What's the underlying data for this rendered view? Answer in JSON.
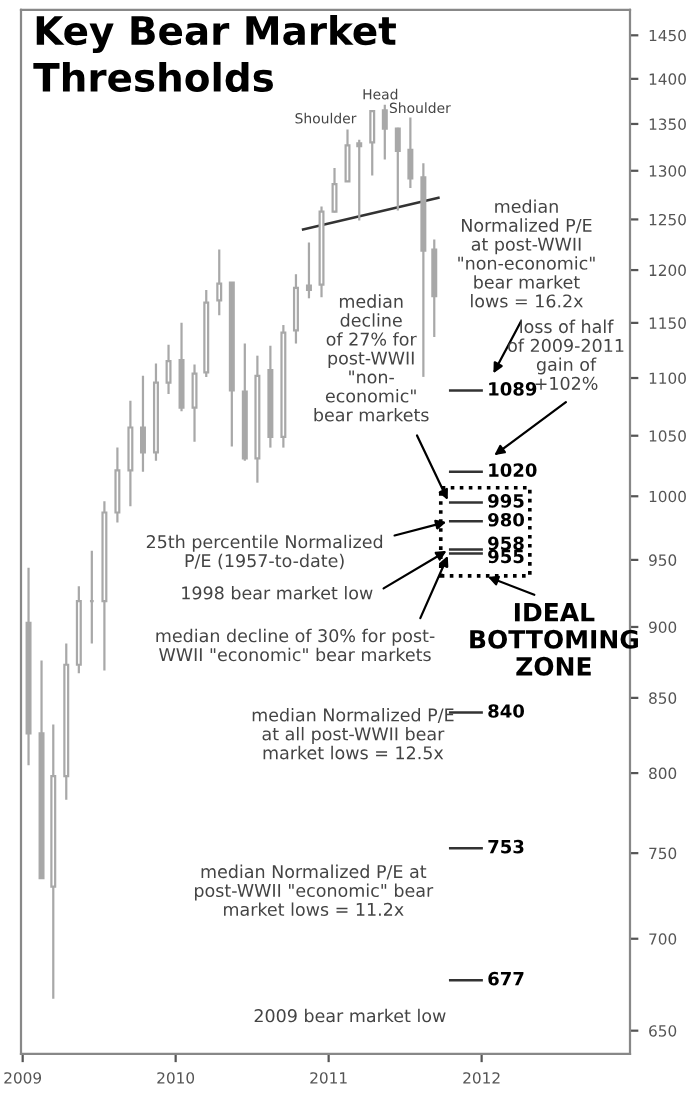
{
  "chart_data": {
    "type": "candlestick",
    "title": "Key Bear Market\nThresholds",
    "color": "#a8a8a8",
    "log": "y",
    "x": [
      "2009-01-15",
      "2009-02-15",
      "2009-03-15",
      "2009-04-15",
      "2009-05-15",
      "2009-06-15",
      "2009-07-15",
      "2009-08-15",
      "2009-09-15",
      "2009-10-15",
      "2009-11-15",
      "2009-12-15",
      "2010-01-15",
      "2010-02-15",
      "2010-03-15",
      "2010-04-15",
      "2010-05-15",
      "2010-06-15",
      "2010-07-15",
      "2010-08-15",
      "2010-09-15",
      "2010-10-15",
      "2010-11-15",
      "2010-12-15",
      "2011-01-15",
      "2011-02-15",
      "2011-03-15",
      "2011-04-15",
      "2011-05-15",
      "2011-06-15",
      "2011-07-15",
      "2011-08-15",
      "2011-09-10"
    ],
    "ohlc": [
      [
        903,
        944,
        805,
        826
      ],
      [
        826,
        876,
        735,
        735
      ],
      [
        730,
        832,
        667,
        798
      ],
      [
        798,
        888,
        783,
        873
      ],
      [
        873,
        930,
        867,
        919
      ],
      [
        919,
        957,
        888,
        919
      ],
      [
        919,
        996,
        869,
        987
      ],
      [
        987,
        1040,
        979,
        1021
      ],
      [
        1021,
        1080,
        992,
        1057
      ],
      [
        1057,
        1102,
        1020,
        1036
      ],
      [
        1036,
        1113,
        1029,
        1096
      ],
      [
        1096,
        1130,
        1086,
        1115
      ],
      [
        1116,
        1150,
        1071,
        1074
      ],
      [
        1074,
        1112,
        1045,
        1104
      ],
      [
        1105,
        1181,
        1101,
        1169
      ],
      [
        1171,
        1220,
        1157,
        1187
      ],
      [
        1188,
        1188,
        1041,
        1089
      ],
      [
        1088,
        1131,
        1029,
        1031
      ],
      [
        1031,
        1120,
        1011,
        1102
      ],
      [
        1107,
        1129,
        1040,
        1049
      ],
      [
        1049,
        1148,
        1040,
        1141
      ],
      [
        1143,
        1196,
        1131,
        1183
      ],
      [
        1185,
        1227,
        1173,
        1181
      ],
      [
        1186,
        1263,
        1174,
        1258
      ],
      [
        1258,
        1303,
        1257,
        1286
      ],
      [
        1289,
        1344,
        1289,
        1327
      ],
      [
        1329,
        1333,
        1249,
        1326
      ],
      [
        1330,
        1364,
        1295,
        1364
      ],
      [
        1365,
        1371,
        1312,
        1345
      ],
      [
        1345,
        1346,
        1259,
        1321
      ],
      [
        1322,
        1357,
        1282,
        1292
      ],
      [
        1293,
        1308,
        1101,
        1219
      ],
      [
        1220,
        1230,
        1137,
        1175
      ]
    ],
    "series": [
      {
        "type": "line",
        "x": [
          "2010-11-01",
          "2011-09-20"
        ],
        "values": [
          1240,
          1272
        ],
        "color": "#333333"
      }
    ],
    "xlim": [
      "2008-12-28",
      "2012-12-20"
    ],
    "xticks": [
      {
        "value": "2009-01-01",
        "label": "2009"
      },
      {
        "value": "2010-01-01",
        "label": "2010"
      },
      {
        "value": "2011-01-01",
        "label": "2011"
      },
      {
        "value": "2012-01-01",
        "label": "2012"
      }
    ],
    "ylim": [
      638,
      1480
    ],
    "yticks": [
      650,
      700,
      750,
      800,
      850,
      900,
      950,
      1000,
      1050,
      1100,
      1150,
      1200,
      1250,
      1300,
      1350,
      1400,
      1450
    ],
    "annotations": [
      "Shoulder",
      "Head",
      "Shoulder",
      "median\nNormalized P/E\nat post-WWII\n\"non-economic\"\nbear market\nlows = 16.2x",
      {
        "text": "median\ndecline\nof 27% for\npost-WWII\n\"non-\neconomic\"\nbear markets",
        "x": "2011-10-15",
        "y": 995
      },
      "loss of half\nof 2009-2011\ngain of\n+102%",
      {
        "text": "25th percentile Normalized\nP/E (1957-to-date)",
        "x": "2011-10-15",
        "y": 980
      },
      {
        "text": "1998 bear market low",
        "x": "2011-10-15",
        "y": 958
      },
      {
        "text": "median decline of 30% for post-\nWWII \"economic\" bear markets",
        "x": "2011-10-15",
        "y": 955
      },
      "IDEAL\nBOTTOMING\nZONE",
      "median Normalized P/E\nat all post-WWII bear\nmarket lows = 12.5x",
      "median Normalized P/E at\npost-WWII \"economic\" bear\nmarket lows = 11.2x",
      "2009 bear market low"
    ],
    "ref_lines": [
      {
        "axis": "y",
        "value": 1089,
        "label": "1089"
      },
      {
        "axis": "y",
        "value": 1020,
        "label": "1020"
      },
      {
        "axis": "y",
        "value": 995,
        "label": "995"
      },
      {
        "axis": "y",
        "value": 980,
        "label": "980"
      },
      {
        "axis": "y",
        "value": 958,
        "label": "958"
      },
      {
        "axis": "y",
        "value": 955,
        "label": "955"
      },
      {
        "axis": "y",
        "value": 840,
        "label": "840"
      },
      {
        "axis": "y",
        "value": 753,
        "label": "753"
      },
      {
        "axis": "y",
        "value": 677,
        "label": "677"
      }
    ]
  }
}
